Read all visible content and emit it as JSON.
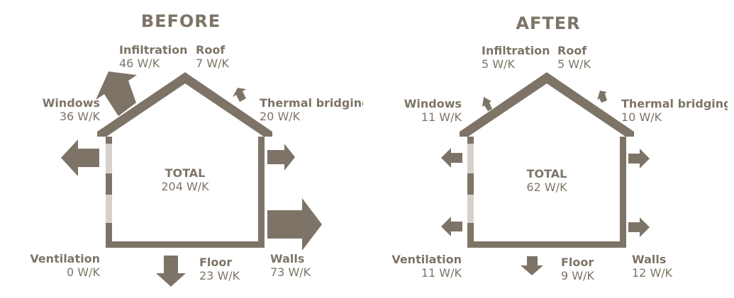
{
  "before": {
    "title": "BEFORE",
    "total": {
      "label": "TOTAL",
      "value": "204 W/K"
    },
    "infiltration": {
      "label": "Infiltration",
      "value": "46 W/K"
    },
    "roof": {
      "label": "Roof",
      "value": "7 W/K"
    },
    "windows": {
      "label": "Windows",
      "value": "36 W/K"
    },
    "thermal_bridging": {
      "label": "Thermal bridging",
      "value": "20 W/K"
    },
    "ventilation": {
      "label": "Ventilation",
      "value": "0 W/K"
    },
    "floor": {
      "label": "Floor",
      "value": "23 W/K"
    },
    "walls": {
      "label": "Walls",
      "value": "73 W/K"
    }
  },
  "after": {
    "title": "AFTER",
    "total": {
      "label": "TOTAL",
      "value": "62 W/K"
    },
    "infiltration": {
      "label": "Infiltration",
      "value": "5 W/K"
    },
    "roof": {
      "label": "Roof",
      "value": "5 W/K"
    },
    "windows": {
      "label": "Windows",
      "value": "11 W/K"
    },
    "thermal_bridging": {
      "label": "Thermal bridging",
      "value": "10 W/K"
    },
    "ventilation": {
      "label": "Ventilation",
      "value": "11 W/K"
    },
    "floor": {
      "label": "Floor",
      "value": "9 W/K"
    },
    "walls": {
      "label": "Walls",
      "value": "12 W/K"
    }
  },
  "colors": {
    "structure": "#7d7467",
    "window": "#d6d1cc",
    "background": "#ffffff"
  }
}
